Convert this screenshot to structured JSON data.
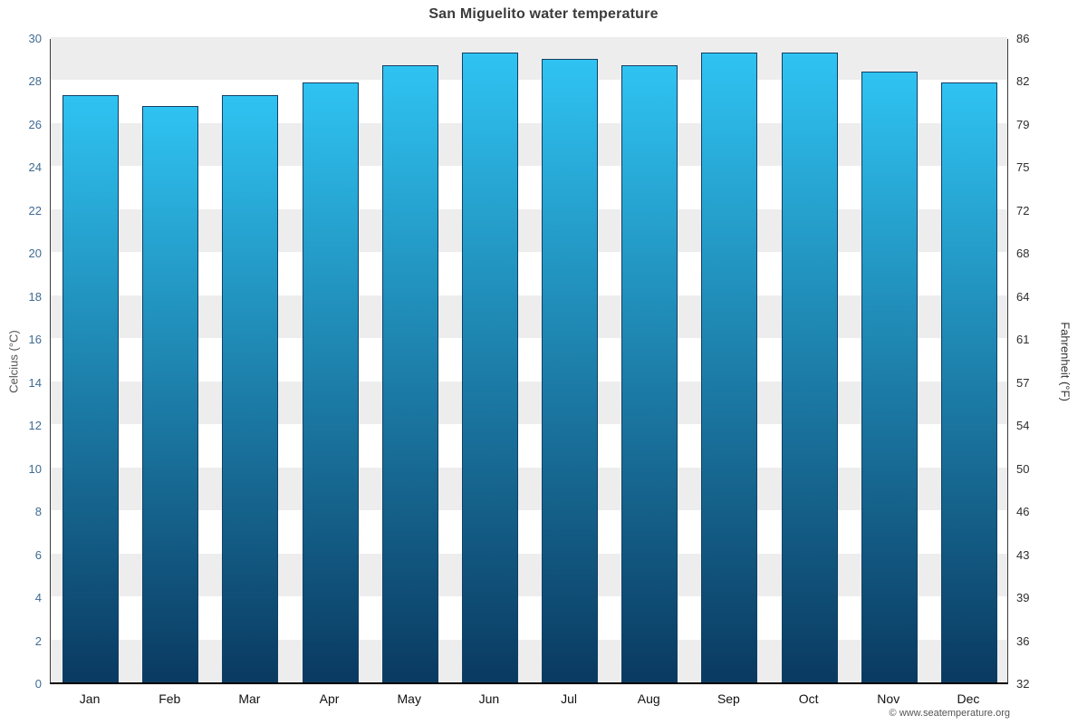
{
  "footer": "© www.seatemperature.org",
  "chart_data": {
    "type": "bar",
    "title": "San Miguelito water temperature",
    "categories": [
      "Jan",
      "Feb",
      "Mar",
      "Apr",
      "May",
      "Jun",
      "Jul",
      "Aug",
      "Sep",
      "Oct",
      "Nov",
      "Dec"
    ],
    "values": [
      27.3,
      26.8,
      27.3,
      27.9,
      28.7,
      29.3,
      29.0,
      28.7,
      29.3,
      29.3,
      28.4,
      27.9
    ],
    "unit": "°C",
    "ylabel_left": "Celcius (°C)",
    "ylabel_right": "Fahrenheit (°F)",
    "ylim": [
      0,
      30
    ],
    "celsius_ticks": [
      0,
      2,
      4,
      6,
      8,
      10,
      12,
      14,
      16,
      18,
      20,
      22,
      24,
      26,
      28,
      30
    ],
    "fahrenheit_tick_labels": [
      "32",
      "36",
      "39",
      "43",
      "46",
      "50",
      "54",
      "57",
      "61",
      "64",
      "68",
      "72",
      "75",
      "79",
      "82",
      "86"
    ],
    "grid": "alternating-horizontal-bands",
    "legend": "none",
    "colors": {
      "bar_top": "#2fc3f2",
      "bar_bottom": "#0a3a61",
      "bar_border": "#123f63",
      "band_gray": "#ededed",
      "band_white": "#ffffff",
      "celsius_tick_color": "#3f6b92",
      "fahrenheit_tick_color": "#2e2e2e",
      "title_color": "#3b3b3b"
    }
  }
}
